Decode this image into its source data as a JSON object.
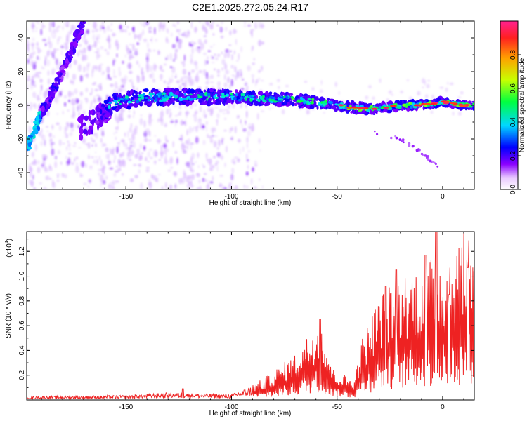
{
  "chart_data": [
    {
      "type": "heatmap",
      "title": "C2E1.2025.272.05.24.R17",
      "xlabel": "Height of straight line (km)",
      "ylabel": "Frequency (Hz)",
      "xlim": [
        -197,
        15
      ],
      "ylim": [
        -50,
        50
      ],
      "x_ticks": [
        -150,
        -100,
        -50,
        0
      ],
      "y_ticks": [
        -40,
        -20,
        0,
        20,
        40
      ],
      "colorbar": {
        "label": "Normalized spectral amplitude",
        "range": [
          0,
          1
        ],
        "ticks": [
          0.0,
          0.2,
          0.4,
          0.6,
          0.8
        ],
        "tick_labels": [
          "0.0",
          "0.2",
          "0.4",
          "0.6",
          "0.8"
        ]
      },
      "main_trace": [
        [
          -162,
          -5
        ],
        [
          -155,
          2
        ],
        [
          -145,
          4
        ],
        [
          -130,
          5
        ],
        [
          -115,
          5
        ],
        [
          -100,
          5
        ],
        [
          -85,
          4
        ],
        [
          -70,
          3
        ],
        [
          -55,
          1
        ],
        [
          -45,
          -1
        ],
        [
          -35,
          -2
        ],
        [
          -25,
          -1
        ],
        [
          -15,
          0
        ],
        [
          -5,
          1
        ],
        [
          0,
          2
        ],
        [
          5,
          1
        ],
        [
          10,
          0
        ],
        [
          15,
          0
        ]
      ],
      "steep_trace": [
        [
          -197,
          -25
        ],
        [
          -190,
          -5
        ],
        [
          -183,
          12
        ],
        [
          -175,
          35
        ],
        [
          -170,
          50
        ]
      ],
      "faint_trace": [
        [
          -35,
          -15
        ],
        [
          -20,
          -20
        ],
        [
          -10,
          -28
        ],
        [
          0,
          -38
        ]
      ]
    },
    {
      "type": "line",
      "xlabel": "Height of straight line (km)",
      "ylabel": "SNR (10 * v/v)",
      "y_multiplier_label": "(x10",
      "y_multiplier_exponent": "4",
      "y_multiplier_suffix": ")",
      "y_units": "x10^4",
      "xlim": [
        -197,
        15
      ],
      "ylim": [
        0,
        1.36
      ],
      "x_ticks": [
        -150,
        -100,
        -50,
        0
      ],
      "y_ticks": [
        0.2,
        0.4,
        0.6,
        0.8,
        1.0,
        1.2
      ],
      "y_tick_labels": [
        "0.2",
        "0.4",
        "0.6",
        "0.8",
        "1.0",
        "1.2"
      ],
      "color": "#ee2222",
      "envelope": [
        [
          -197,
          0.02
        ],
        [
          -150,
          0.025
        ],
        [
          -130,
          0.04
        ],
        [
          -100,
          0.03
        ],
        [
          -85,
          0.1
        ],
        [
          -70,
          0.22
        ],
        [
          -58,
          0.4
        ],
        [
          -52,
          0.15
        ],
        [
          -42,
          0.1
        ],
        [
          -38,
          0.3
        ],
        [
          -30,
          0.5
        ],
        [
          -20,
          0.6
        ],
        [
          -10,
          0.65
        ],
        [
          0,
          0.7
        ],
        [
          10,
          0.8
        ],
        [
          15,
          0.88
        ]
      ],
      "peaks": [
        [
          -123,
          0.09
        ],
        [
          -58,
          0.65
        ],
        [
          -27,
          0.92
        ],
        [
          -22,
          1.05
        ],
        [
          -8,
          1.17
        ],
        [
          -3,
          1.36
        ],
        [
          3,
          0.85
        ],
        [
          12,
          1.07
        ]
      ]
    }
  ]
}
